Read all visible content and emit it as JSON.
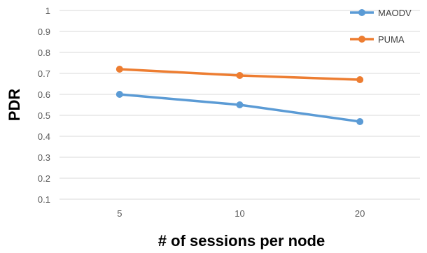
{
  "chart_data": {
    "type": "line",
    "categories": [
      "5",
      "10",
      "20"
    ],
    "series": [
      {
        "name": "MAODV",
        "values": [
          0.6,
          0.55,
          0.47
        ],
        "color": "#5B9BD5"
      },
      {
        "name": "PUMA",
        "values": [
          0.72,
          0.69,
          0.67
        ],
        "color": "#ED7D31"
      }
    ],
    "xlabel": "# of sessions per node",
    "ylabel": "PDR",
    "ylim": [
      0.1,
      1
    ],
    "yticks": [
      "0.1",
      "0.2",
      "0.3",
      "0.4",
      "0.5",
      "0.6",
      "0.7",
      "0.8",
      "0.9",
      "1"
    ],
    "grid": true,
    "gridline_color": "#D9D9D9",
    "legend_position": "top-right"
  }
}
